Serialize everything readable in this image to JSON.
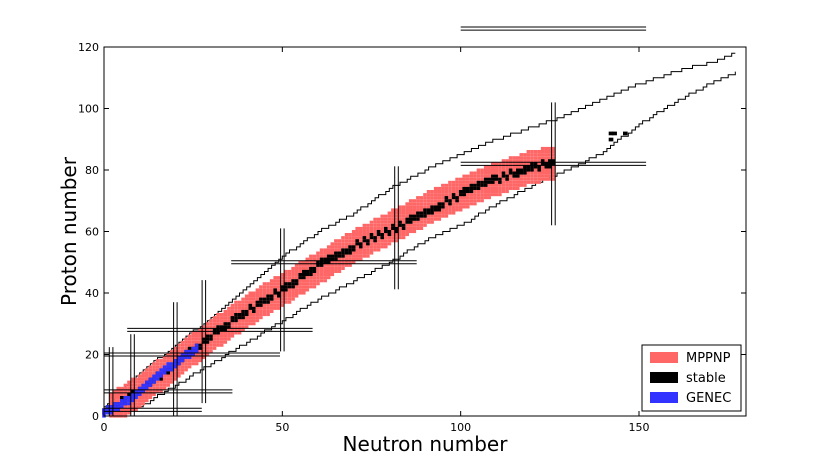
{
  "chart_data": {
    "type": "scatter",
    "title": "",
    "xlabel": "Neutron number",
    "ylabel": "Proton number",
    "xlim": [
      0,
      180
    ],
    "ylim": [
      0,
      120
    ],
    "x_ticks": [
      0,
      50,
      100,
      150
    ],
    "y_ticks": [
      0,
      20,
      40,
      60,
      80,
      100,
      120
    ],
    "grid": false,
    "legend_position": "bottom-right",
    "magic_numbers": [
      2,
      8,
      20,
      28,
      50,
      82,
      126
    ],
    "series": [
      {
        "name": "MPPNP",
        "color": "#ff6666",
        "band_center": [
          [
            2,
            2
          ],
          [
            10,
            8
          ],
          [
            20,
            17
          ],
          [
            30,
            26
          ],
          [
            40,
            34
          ],
          [
            50,
            41
          ],
          [
            60,
            48
          ],
          [
            70,
            55
          ],
          [
            80,
            61
          ],
          [
            90,
            67
          ],
          [
            100,
            72
          ],
          [
            110,
            77
          ],
          [
            120,
            81
          ],
          [
            126,
            82
          ]
        ],
        "band_half_width": 5
      },
      {
        "name": "stable",
        "color": "#000000",
        "band_center": [
          [
            0,
            1
          ],
          [
            10,
            8
          ],
          [
            20,
            17
          ],
          [
            30,
            26
          ],
          [
            40,
            34
          ],
          [
            50,
            41
          ],
          [
            60,
            49
          ],
          [
            70,
            55
          ],
          [
            80,
            60
          ],
          [
            90,
            66
          ],
          [
            100,
            72
          ],
          [
            110,
            77
          ],
          [
            120,
            81
          ],
          [
            126,
            82
          ]
        ],
        "band_half_width": 1,
        "extra_points": [
          [
            142,
            90
          ],
          [
            142,
            92
          ],
          [
            143,
            92
          ],
          [
            146,
            92
          ]
        ]
      },
      {
        "name": "GENEC",
        "color": "#3333ff",
        "band_center": [
          [
            0,
            1
          ],
          [
            4,
            3
          ],
          [
            8,
            6
          ],
          [
            12,
            10
          ],
          [
            16,
            14
          ],
          [
            20,
            17
          ],
          [
            26,
            22
          ]
        ],
        "band_half_width": 1
      }
    ],
    "network_boundary": {
      "upper": [
        [
          0,
          3
        ],
        [
          10,
          14
        ],
        [
          20,
          23
        ],
        [
          30,
          32
        ],
        [
          40,
          42
        ],
        [
          50,
          52
        ],
        [
          60,
          60
        ],
        [
          70,
          66
        ],
        [
          80,
          74
        ],
        [
          90,
          80
        ],
        [
          100,
          85
        ],
        [
          110,
          90
        ],
        [
          120,
          94
        ],
        [
          130,
          98
        ],
        [
          140,
          103
        ],
        [
          150,
          108
        ],
        [
          160,
          112
        ],
        [
          170,
          115
        ],
        [
          177,
          118
        ]
      ],
      "lower": [
        [
          0,
          0
        ],
        [
          10,
          3
        ],
        [
          20,
          10
        ],
        [
          30,
          17
        ],
        [
          40,
          24
        ],
        [
          50,
          31
        ],
        [
          60,
          38
        ],
        [
          70,
          44
        ],
        [
          80,
          50
        ],
        [
          90,
          57
        ],
        [
          100,
          62
        ],
        [
          110,
          69
        ],
        [
          120,
          75
        ],
        [
          130,
          80
        ],
        [
          140,
          86
        ],
        [
          150,
          95
        ],
        [
          160,
          102
        ],
        [
          168,
          107
        ],
        [
          177,
          112
        ]
      ]
    }
  }
}
